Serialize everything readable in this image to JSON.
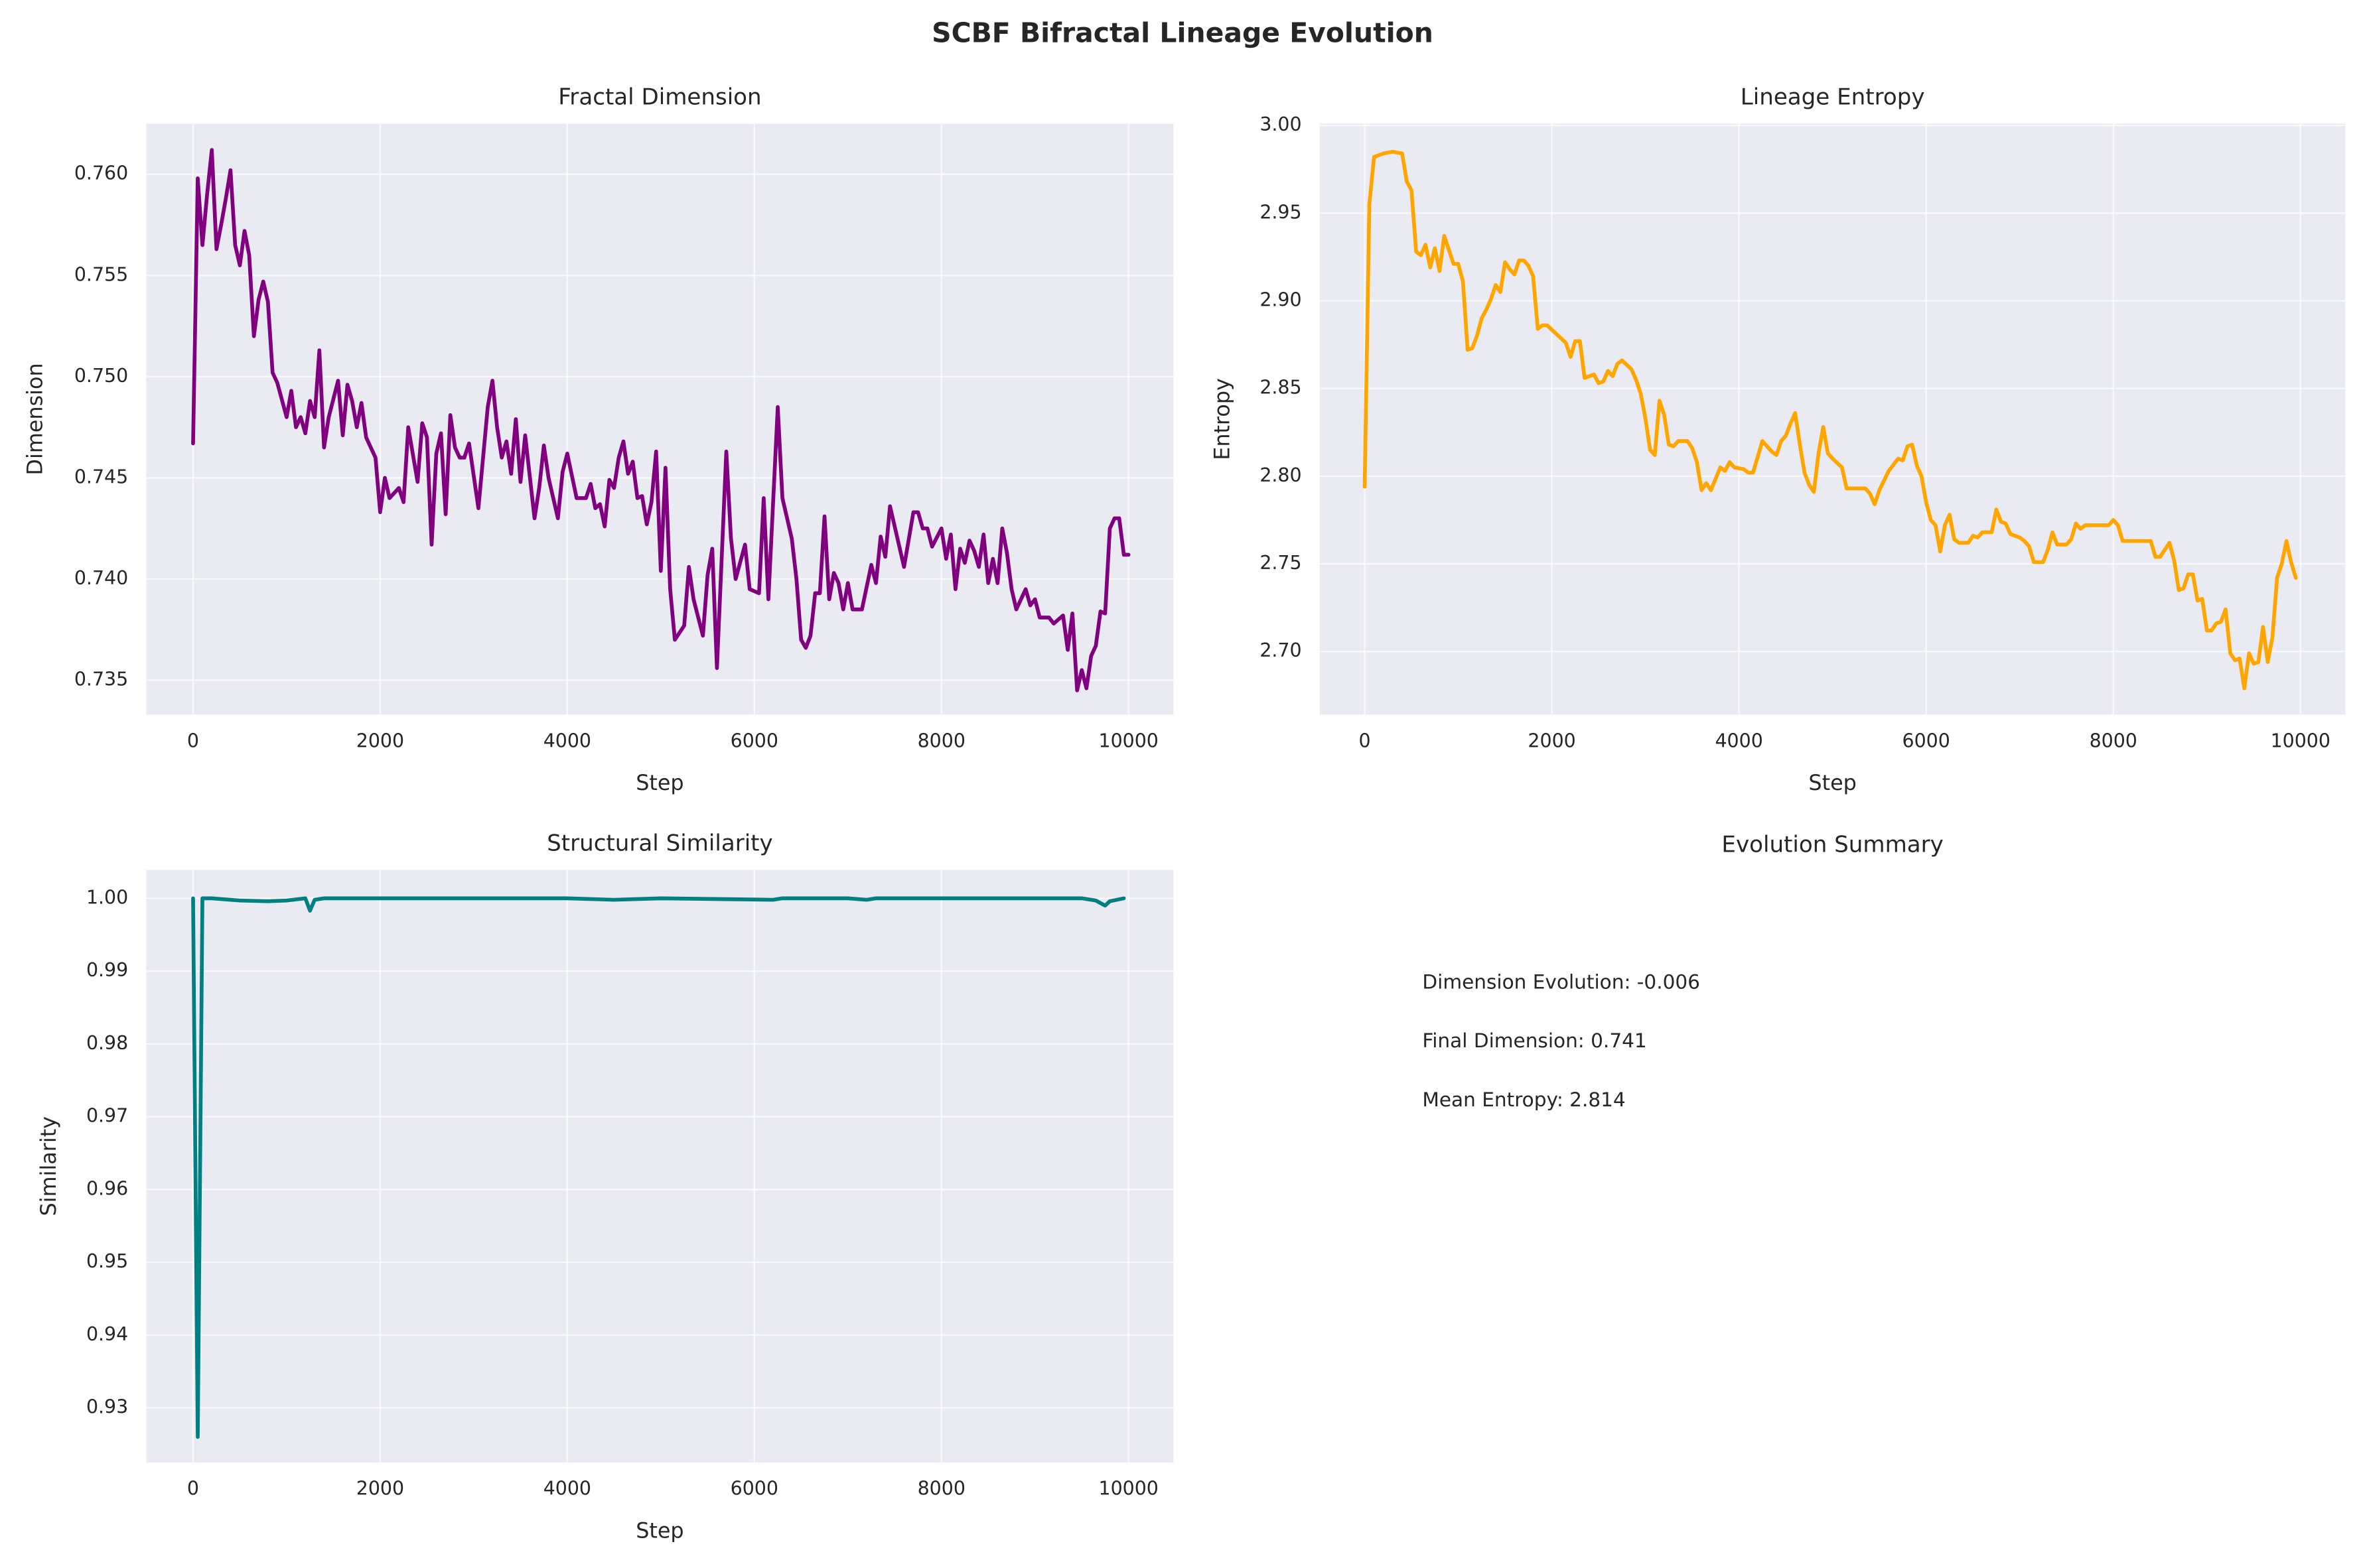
{
  "title": "SCBF Bifractal Lineage Evolution",
  "chart_data": [
    {
      "type": "line",
      "title": "Fractal Dimension",
      "x_label": "Step",
      "y_label": "Dimension",
      "color": "#800080",
      "grid": true,
      "xlim": [
        -500,
        10480
      ],
      "xticks": [
        0,
        2000,
        4000,
        6000,
        8000,
        10000
      ],
      "ylim": [
        0.7333,
        0.7625
      ],
      "yticks": [
        {
          "value": 0.735,
          "label": "0.735"
        },
        {
          "value": 0.74,
          "label": "0.740"
        },
        0.745,
        {
          "value": 0.75,
          "label": "0.750"
        },
        0.755,
        {
          "value": 0.76,
          "label": "0.760"
        }
      ],
      "x": [
        0,
        50,
        100,
        150,
        200,
        250,
        300,
        350,
        400,
        450,
        500,
        550,
        600,
        650,
        700,
        750,
        800,
        850,
        900,
        1000,
        1050,
        1100,
        1150,
        1200,
        1250,
        1300,
        1350,
        1400,
        1450,
        1550,
        1600,
        1650,
        1700,
        1750,
        1800,
        1850,
        1950,
        2000,
        2050,
        2100,
        2200,
        2250,
        2300,
        2400,
        2450,
        2500,
        2550,
        2600,
        2650,
        2700,
        2750,
        2800,
        2850,
        2900,
        2950,
        3050,
        3150,
        3200,
        3250,
        3300,
        3350,
        3400,
        3450,
        3500,
        3550,
        3650,
        3700,
        3750,
        3800,
        3900,
        3950,
        4000,
        4100,
        4200,
        4250,
        4300,
        4350,
        4400,
        4450,
        4500,
        4550,
        4600,
        4650,
        4700,
        4750,
        4800,
        4850,
        4900,
        4950,
        5000,
        5050,
        5100,
        5150,
        5250,
        5300,
        5350,
        5450,
        5500,
        5550,
        5600,
        5700,
        5750,
        5800,
        5900,
        5950,
        6050,
        6100,
        6150,
        6250,
        6300,
        6400,
        6450,
        6500,
        6550,
        6600,
        6650,
        6700,
        6750,
        6800,
        6850,
        6900,
        6950,
        7000,
        7050,
        7150,
        7250,
        7300,
        7350,
        7400,
        7450,
        7600,
        7700,
        7750,
        7800,
        7850,
        7900,
        8000,
        8050,
        8100,
        8150,
        8200,
        8250,
        8300,
        8350,
        8400,
        8450,
        8500,
        8550,
        8600,
        8650,
        8700,
        8750,
        8800,
        8900,
        8950,
        9000,
        9050,
        9150,
        9200,
        9250,
        9300,
        9350,
        9400,
        9450,
        9500,
        9550,
        9600,
        9650,
        9700,
        9750,
        9800,
        9850,
        9900,
        9950,
        10000
      ],
      "values": [
        0.7467,
        0.7598,
        0.7565,
        0.759,
        0.7612,
        0.7563,
        0.7575,
        0.7588,
        0.7602,
        0.7565,
        0.7555,
        0.7572,
        0.756,
        0.752,
        0.7538,
        0.7547,
        0.7537,
        0.7502,
        0.7497,
        0.748,
        0.7493,
        0.7475,
        0.748,
        0.7472,
        0.7488,
        0.748,
        0.7513,
        0.7465,
        0.748,
        0.7498,
        0.7471,
        0.7496,
        0.7488,
        0.7475,
        0.7487,
        0.747,
        0.746,
        0.7433,
        0.745,
        0.744,
        0.7445,
        0.7438,
        0.7475,
        0.7448,
        0.7477,
        0.747,
        0.7417,
        0.7462,
        0.7472,
        0.7432,
        0.7481,
        0.7465,
        0.746,
        0.746,
        0.7467,
        0.7435,
        0.7485,
        0.7498,
        0.7475,
        0.746,
        0.7468,
        0.7452,
        0.7479,
        0.7448,
        0.7471,
        0.743,
        0.7445,
        0.7466,
        0.745,
        0.743,
        0.7453,
        0.7462,
        0.744,
        0.744,
        0.7447,
        0.7435,
        0.7437,
        0.7426,
        0.7449,
        0.7445,
        0.746,
        0.7468,
        0.7452,
        0.7458,
        0.744,
        0.7441,
        0.7427,
        0.7438,
        0.7463,
        0.7404,
        0.7455,
        0.7395,
        0.737,
        0.7377,
        0.7406,
        0.739,
        0.7372,
        0.7402,
        0.7415,
        0.7356,
        0.7463,
        0.742,
        0.74,
        0.7417,
        0.7395,
        0.7393,
        0.744,
        0.739,
        0.7485,
        0.744,
        0.742,
        0.74,
        0.737,
        0.7366,
        0.7372,
        0.7393,
        0.7393,
        0.7431,
        0.739,
        0.7403,
        0.7398,
        0.7385,
        0.7398,
        0.7385,
        0.7385,
        0.7407,
        0.7398,
        0.7421,
        0.7411,
        0.7436,
        0.7406,
        0.7433,
        0.7433,
        0.7425,
        0.7425,
        0.7416,
        0.7425,
        0.741,
        0.7422,
        0.7395,
        0.7415,
        0.7408,
        0.7419,
        0.7414,
        0.7406,
        0.7422,
        0.7398,
        0.741,
        0.7398,
        0.7425,
        0.7413,
        0.7395,
        0.7385,
        0.7395,
        0.7387,
        0.739,
        0.7381,
        0.7381,
        0.7378,
        0.738,
        0.7382,
        0.7365,
        0.7383,
        0.7345,
        0.7355,
        0.7346,
        0.7362,
        0.7367,
        0.7384,
        0.7383,
        0.7425,
        0.743,
        0.743,
        0.7412,
        0.7412
      ]
    },
    {
      "type": "line",
      "title": "Lineage Entropy",
      "x_label": "Step",
      "y_label": "Entropy",
      "color": "#ffa500",
      "grid": true,
      "xlim": [
        -480,
        10480
      ],
      "xticks": [
        0,
        2000,
        4000,
        6000,
        8000,
        10000
      ],
      "ylim": [
        2.664,
        3.001
      ],
      "yticks": [
        {
          "value": 2.7,
          "label": "2.70"
        },
        2.75,
        {
          "value": 2.8,
          "label": "2.80"
        },
        2.85,
        {
          "value": 2.9,
          "label": "2.90"
        },
        2.95,
        {
          "value": 3,
          "label": "3.00"
        }
      ],
      "x": [
        0,
        50,
        100,
        200,
        300,
        400,
        450,
        500,
        550,
        600,
        650,
        700,
        750,
        800,
        850,
        900,
        950,
        1000,
        1050,
        1100,
        1150,
        1200,
        1250,
        1300,
        1350,
        1400,
        1450,
        1500,
        1550,
        1600,
        1650,
        1700,
        1750,
        1800,
        1850,
        1900,
        1950,
        2050,
        2150,
        2200,
        2250,
        2300,
        2350,
        2450,
        2500,
        2550,
        2600,
        2650,
        2700,
        2750,
        2850,
        2900,
        2950,
        3000,
        3050,
        3100,
        3150,
        3200,
        3250,
        3300,
        3350,
        3450,
        3500,
        3550,
        3600,
        3650,
        3700,
        3800,
        3850,
        3900,
        3950,
        4050,
        4100,
        4150,
        4200,
        4250,
        4300,
        4350,
        4400,
        4450,
        4500,
        4550,
        4600,
        4650,
        4700,
        4750,
        4800,
        4850,
        4900,
        4950,
        5000,
        5100,
        5150,
        5350,
        5400,
        5450,
        5500,
        5600,
        5700,
        5750,
        5800,
        5850,
        5900,
        5950,
        6000,
        6050,
        6100,
        6150,
        6200,
        6250,
        6300,
        6350,
        6450,
        6500,
        6550,
        6600,
        6700,
        6750,
        6800,
        6850,
        6900,
        7000,
        7050,
        7100,
        7150,
        7250,
        7300,
        7350,
        7400,
        7500,
        7550,
        7600,
        7650,
        7700,
        7800,
        7950,
        8000,
        8050,
        8100,
        8400,
        8450,
        8500,
        8600,
        8650,
        8700,
        8750,
        8800,
        8850,
        8900,
        8950,
        9000,
        9050,
        9100,
        9150,
        9200,
        9250,
        9300,
        9350,
        9400,
        9450,
        9500,
        9550,
        9600,
        9650,
        9700,
        9750,
        9800,
        9850,
        9900,
        9950
      ],
      "values": [
        2.794,
        2.955,
        2.982,
        2.984,
        2.985,
        2.984,
        2.968,
        2.963,
        2.928,
        2.926,
        2.932,
        2.919,
        2.93,
        2.917,
        2.937,
        2.929,
        2.921,
        2.921,
        2.911,
        2.872,
        2.873,
        2.88,
        2.89,
        2.895,
        2.901,
        2.909,
        2.905,
        2.922,
        2.918,
        2.915,
        2.923,
        2.923,
        2.92,
        2.914,
        2.884,
        2.886,
        2.886,
        2.881,
        2.876,
        2.868,
        2.877,
        2.877,
        2.856,
        2.858,
        2.853,
        2.854,
        2.86,
        2.857,
        2.864,
        2.866,
        2.861,
        2.855,
        2.847,
        2.833,
        2.815,
        2.812,
        2.843,
        2.835,
        2.818,
        2.817,
        2.82,
        2.82,
        2.816,
        2.808,
        2.792,
        2.796,
        2.792,
        2.805,
        2.803,
        2.808,
        2.805,
        2.804,
        2.802,
        2.802,
        2.811,
        2.82,
        2.817,
        2.814,
        2.812,
        2.82,
        2.823,
        2.83,
        2.836,
        2.818,
        2.802,
        2.795,
        2.791,
        2.813,
        2.828,
        2.813,
        2.81,
        2.805,
        2.793,
        2.793,
        2.79,
        2.784,
        2.792,
        2.803,
        2.81,
        2.809,
        2.817,
        2.818,
        2.806,
        2.8,
        2.785,
        2.775,
        2.772,
        2.757,
        2.772,
        2.778,
        2.764,
        2.762,
        2.762,
        2.766,
        2.765,
        2.768,
        2.768,
        2.781,
        2.774,
        2.773,
        2.767,
        2.765,
        2.763,
        2.76,
        2.751,
        2.751,
        2.758,
        2.768,
        2.761,
        2.761,
        2.764,
        2.773,
        2.77,
        2.772,
        2.772,
        2.772,
        2.775,
        2.772,
        2.763,
        2.763,
        2.754,
        2.754,
        2.762,
        2.752,
        2.735,
        2.736,
        2.744,
        2.744,
        2.729,
        2.73,
        2.712,
        2.712,
        2.716,
        2.717,
        2.724,
        2.699,
        2.695,
        2.696,
        2.679,
        2.699,
        2.693,
        2.694,
        2.714,
        2.694,
        2.708,
        2.742,
        2.75,
        2.763,
        2.751,
        2.742
      ]
    },
    {
      "type": "line",
      "title": "Structural Similarity",
      "x_label": "Step",
      "y_label": "Similarity",
      "color": "#008080",
      "grid": true,
      "xlim": [
        -500,
        10480
      ],
      "xticks": [
        0,
        2000,
        4000,
        6000,
        8000,
        10000
      ],
      "ylim": [
        0.9225,
        1.0039
      ],
      "yticks": [
        0.93,
        0.94,
        0.95,
        0.96,
        0.97,
        0.98,
        0.99,
        {
          "value": 1,
          "label": "1.00"
        }
      ],
      "x": [
        0,
        50,
        100,
        200,
        500,
        800,
        1000,
        1200,
        1250,
        1300,
        1400,
        3000,
        4000,
        4500,
        5000,
        6200,
        6300,
        7000,
        7200,
        7300,
        9500,
        9650,
        9750,
        9800,
        9950
      ],
      "values": [
        1,
        0.926,
        1,
        1,
        0.9997,
        0.9996,
        0.9997,
        1,
        0.9983,
        0.9998,
        1,
        1,
        1,
        0.9998,
        1,
        0.9998,
        1,
        1,
        0.9998,
        1,
        1,
        0.9997,
        0.999,
        0.9996,
        1
      ]
    }
  ],
  "summary": {
    "title": "Evolution Summary",
    "lines": [
      "Dimension Evolution: -0.006",
      "Final Dimension: 0.741",
      "Mean Entropy: 2.814"
    ]
  }
}
